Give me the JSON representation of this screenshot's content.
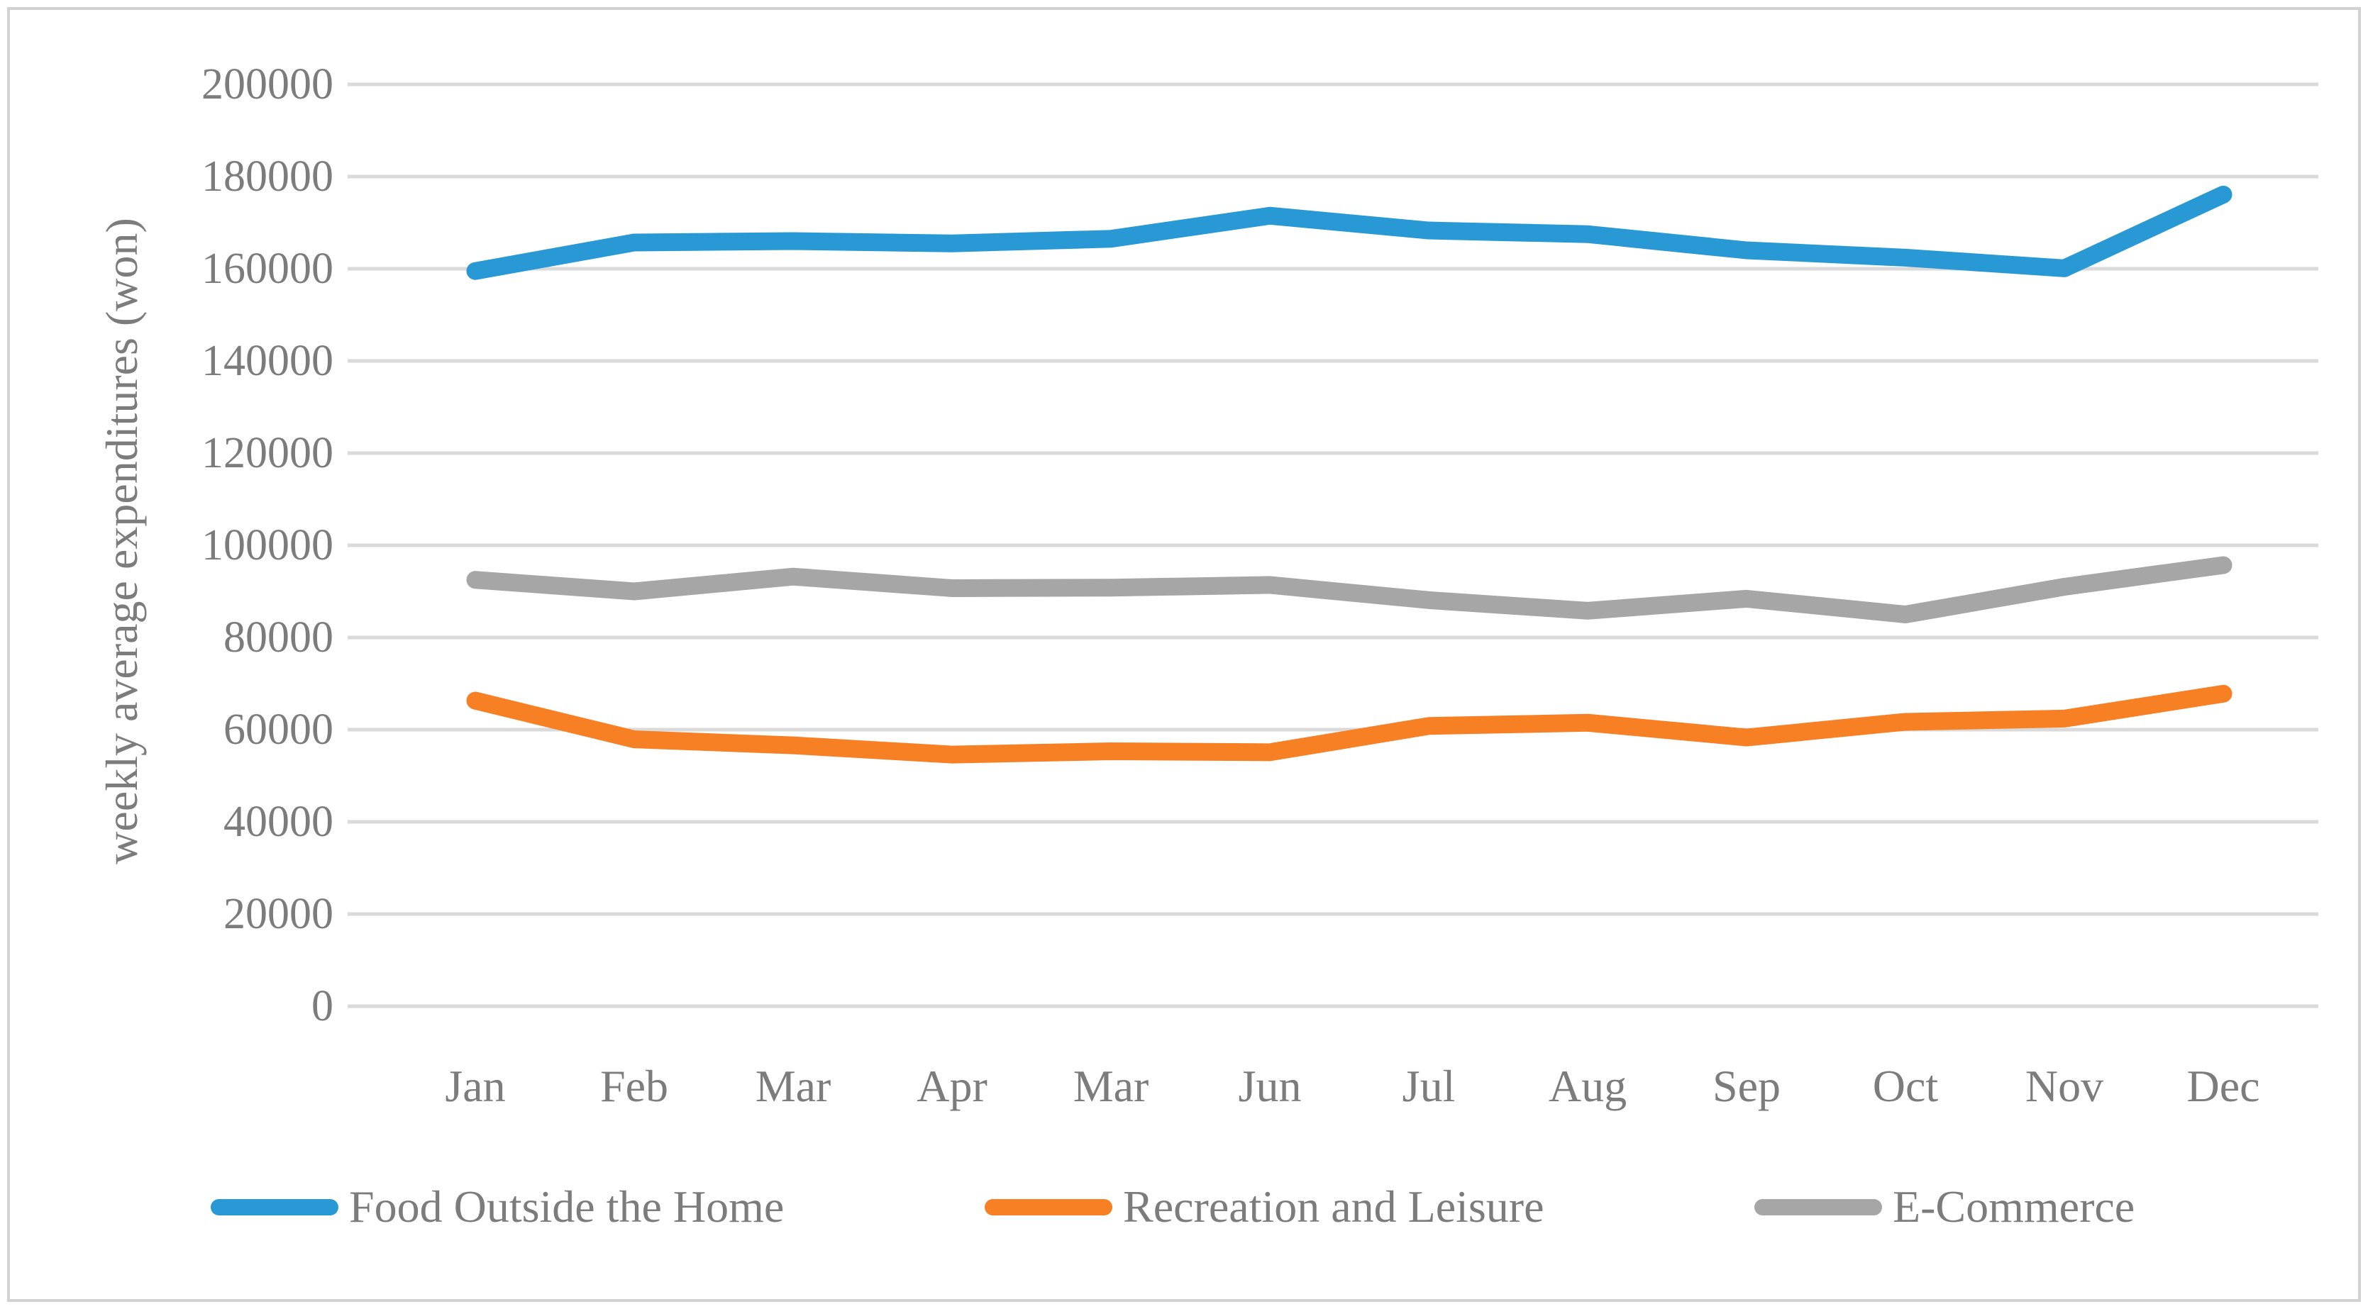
{
  "figure": {
    "background": "#ffffff",
    "frame_color": "#d2d2d2",
    "text_color": "#7c7c7c",
    "gridline_color": "#dadada"
  },
  "chart_data": {
    "type": "line",
    "title": "",
    "xlabel": "",
    "ylabel": "weekly average expenditures (won)",
    "categories": [
      "Jan",
      "Feb",
      "Mar",
      "Apr",
      "Mar",
      "Jun",
      "Jul",
      "Aug",
      "Sep",
      "Oct",
      "Nov",
      "Dec"
    ],
    "series": [
      {
        "name": "Food Outside the Home",
        "color": "#2899d4",
        "values": [
          159500,
          165700,
          166000,
          165500,
          166500,
          171500,
          168300,
          167500,
          164000,
          162400,
          160100,
          176100
        ]
      },
      {
        "name": "Recreation and Leisure",
        "color": "#f77f24",
        "values": [
          66300,
          57900,
          56600,
          54600,
          55300,
          55100,
          60800,
          61500,
          58300,
          61700,
          62400,
          67800
        ]
      },
      {
        "name": "E-Commerce",
        "color": "#a6a6a6",
        "values": [
          92500,
          90000,
          93200,
          90700,
          90800,
          91400,
          88100,
          85800,
          88400,
          85000,
          91000,
          95700
        ]
      }
    ],
    "y_ticks": [
      0,
      20000,
      40000,
      60000,
      80000,
      100000,
      120000,
      140000,
      160000,
      180000,
      200000
    ],
    "ylim": [
      0,
      200000
    ],
    "grid": "horizontal",
    "legend_position": "bottom"
  }
}
